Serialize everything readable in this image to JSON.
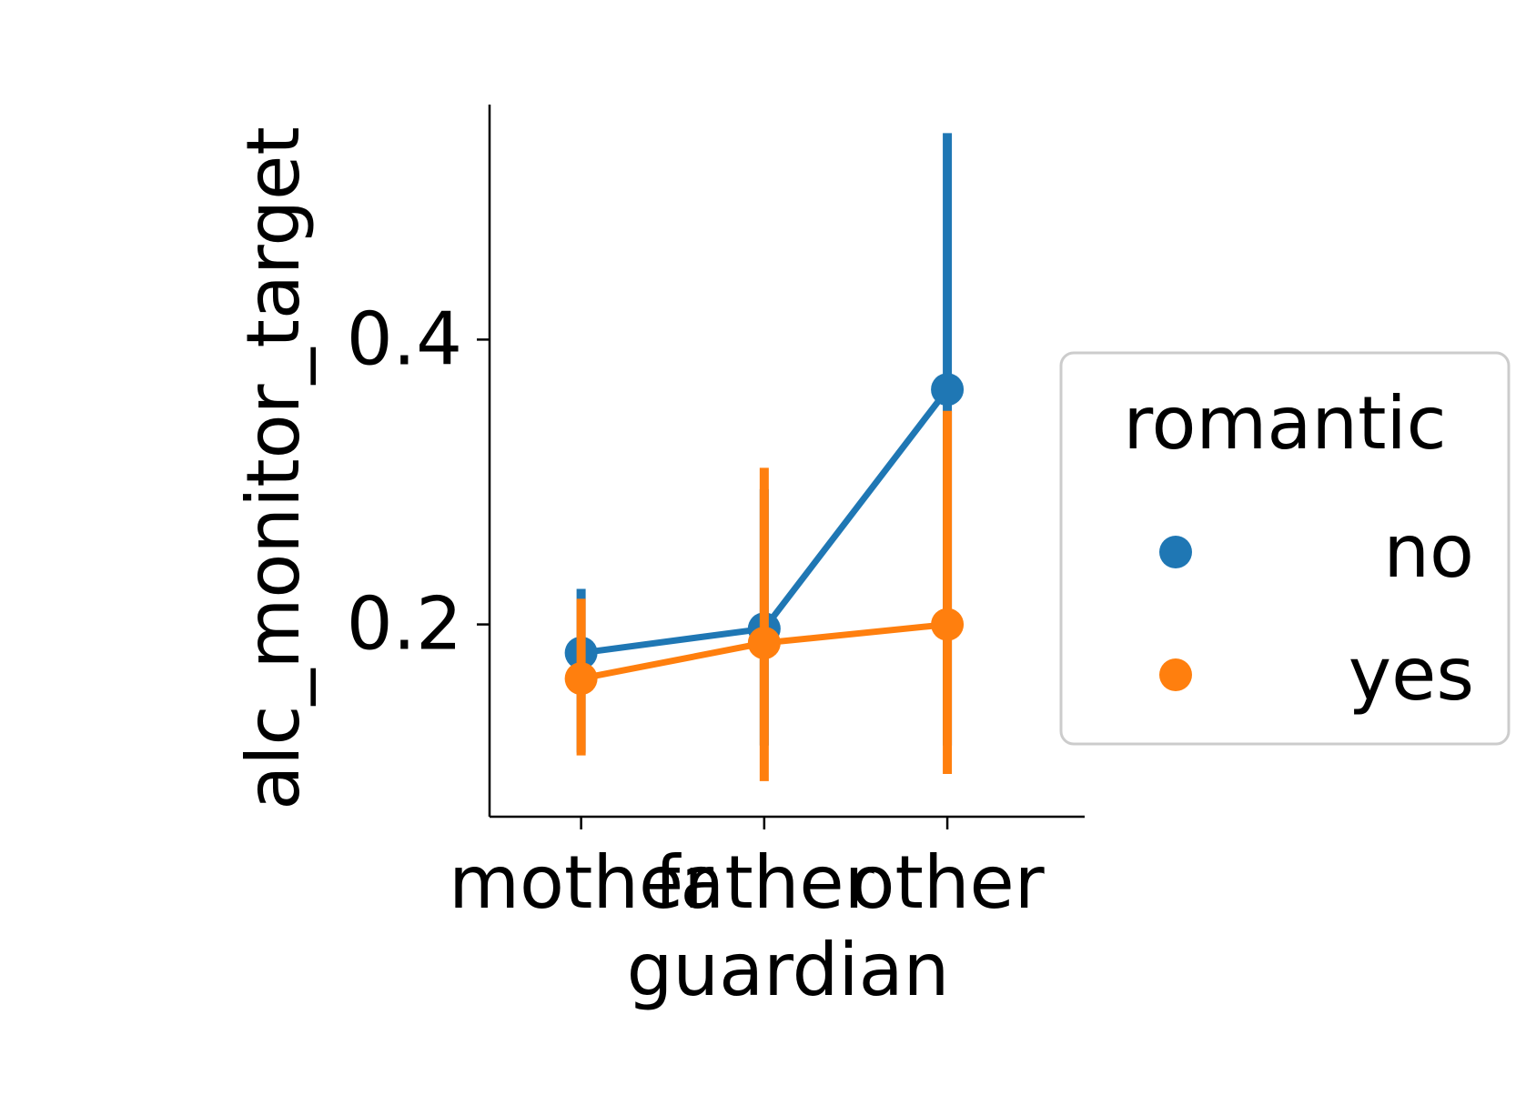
{
  "chart_data": {
    "type": "point",
    "title": "",
    "xlabel": "guardian",
    "ylabel": "alc_monitor_target",
    "categories": [
      "mother",
      "father",
      "other"
    ],
    "ylim": [
      0.065,
      0.565
    ],
    "yticks": [
      0.2,
      0.4
    ],
    "ytick_labels": [
      "0.2",
      "0.4"
    ],
    "legend": {
      "title": "romantic",
      "placement": "right"
    },
    "series": [
      {
        "name": "no",
        "color": "#1f77b4",
        "values": [
          0.18,
          0.197,
          0.365
        ],
        "ci_low": [
          0.11,
          0.115,
          0.115
        ],
        "ci_high": [
          0.225,
          0.295,
          0.545
        ]
      },
      {
        "name": "yes",
        "color": "#ff7f0e",
        "values": [
          0.162,
          0.187,
          0.2
        ],
        "ci_low": [
          0.108,
          0.09,
          0.095
        ],
        "ci_high": [
          0.218,
          0.31,
          0.35
        ]
      }
    ]
  }
}
